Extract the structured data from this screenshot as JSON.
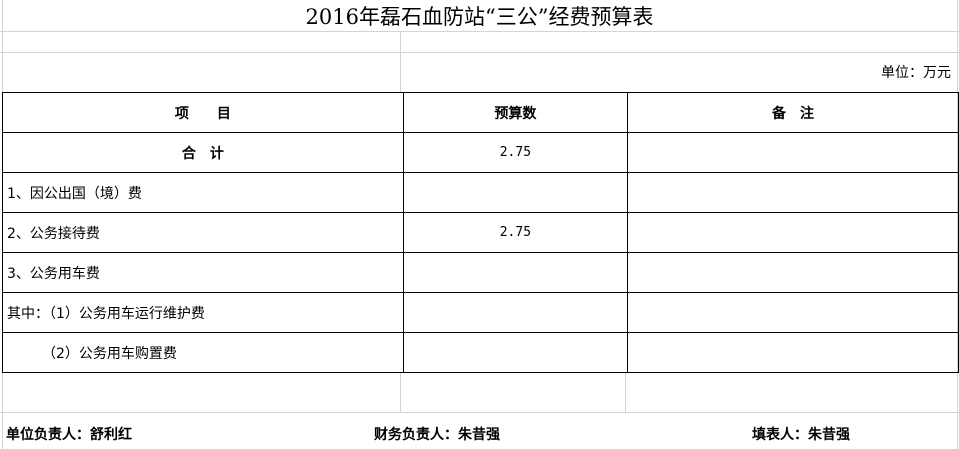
{
  "title": "2016年磊石血防站“三公”经费预算表",
  "unit": "单位：万元",
  "table": {
    "headers": [
      "项　　目",
      "预算数",
      "备　注"
    ],
    "rows": [
      {
        "item": "合　计",
        "budget": "2.75",
        "note": "",
        "bold": true
      },
      {
        "item": "1、因公出国（境）费",
        "budget": "",
        "note": ""
      },
      {
        "item": "2、公务接待费",
        "budget": "2.75",
        "note": ""
      },
      {
        "item": "3、公务用车费",
        "budget": "",
        "note": ""
      },
      {
        "item": "其中：（1）公务用车运行维护费",
        "budget": "",
        "note": ""
      },
      {
        "item": "　　　（2）公务用车购置费",
        "budget": "",
        "note": ""
      }
    ]
  },
  "footer": {
    "unit_head": "单位负责人：舒利红",
    "finance_head": "财务负责人：朱昔强",
    "preparer": "填表人：朱昔强"
  }
}
